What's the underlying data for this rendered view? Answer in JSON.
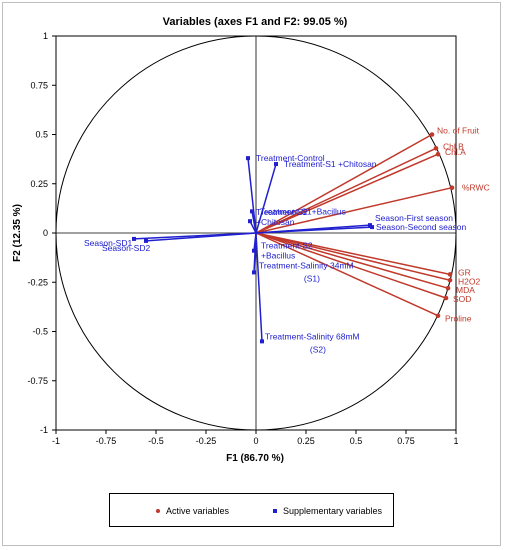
{
  "chart_data": {
    "type": "scatter",
    "title": "Variables (axes F1 and F2: 99.05 %)",
    "xlabel": "F1 (86.70 %)",
    "ylabel": "F2 (12.35 %)",
    "xlim": [
      -1,
      1
    ],
    "ylim": [
      -1,
      1
    ],
    "x_ticks": [
      "-1",
      "-0.75",
      "-0.5",
      "-0.25",
      "0",
      "0.25",
      "0.5",
      "0.75",
      "1"
    ],
    "y_ticks": [
      "1",
      "0.75",
      "0.5",
      "0.25",
      "0",
      "-0.25",
      "-0.5",
      "-0.75",
      "-1"
    ],
    "correlation_circle": true,
    "colors": {
      "active": "#c0392b",
      "supplementary": "#2020d0",
      "circle": "#000000"
    },
    "active_variables": [
      {
        "label": "No. of Fruit",
        "x": 0.88,
        "y": 0.5
      },
      {
        "label": "Chl.B",
        "x": 0.9,
        "y": 0.43
      },
      {
        "label": "Chl.A",
        "x": 0.91,
        "y": 0.4
      },
      {
        "label": "%RWC",
        "x": 0.98,
        "y": 0.23
      },
      {
        "label": "GR",
        "x": 0.97,
        "y": -0.21
      },
      {
        "label": "H2O2",
        "x": 0.97,
        "y": -0.24
      },
      {
        "label": "MDA",
        "x": 0.96,
        "y": -0.28
      },
      {
        "label": "SOD",
        "x": 0.95,
        "y": -0.33
      },
      {
        "label": "Proline",
        "x": 0.91,
        "y": -0.42
      }
    ],
    "supplementary_variables": [
      {
        "label": "Treatment-Control",
        "x": -0.04,
        "y": 0.38
      },
      {
        "label": "Treatment-S1 +Chitosan",
        "x": 0.1,
        "y": 0.35
      },
      {
        "label": "Treatment-S1+Bacillus",
        "x": -0.02,
        "y": 0.11
      },
      {
        "label": "Treatment-S2 +Chitosan",
        "x": -0.03,
        "y": 0.06
      },
      {
        "label": "Season-First season",
        "x": 0.57,
        "y": 0.04
      },
      {
        "label": "Season-Second season",
        "x": 0.58,
        "y": 0.03
      },
      {
        "label": "Season-SD1",
        "x": -0.61,
        "y": -0.03
      },
      {
        "label": "Season-SD2",
        "x": -0.55,
        "y": -0.04
      },
      {
        "label": "Treatment-S2 +Bacillus",
        "x": -0.01,
        "y": -0.09
      },
      {
        "label": "Treatment-Salinity 34mM (S1)",
        "x": -0.01,
        "y": -0.2
      },
      {
        "label": "Treatment-Salinity 68mM (S2)",
        "x": 0.03,
        "y": -0.55
      }
    ],
    "legend": {
      "position": "bottom",
      "active_label": "Active variables",
      "supplementary_label": "Supplementary variables"
    }
  }
}
